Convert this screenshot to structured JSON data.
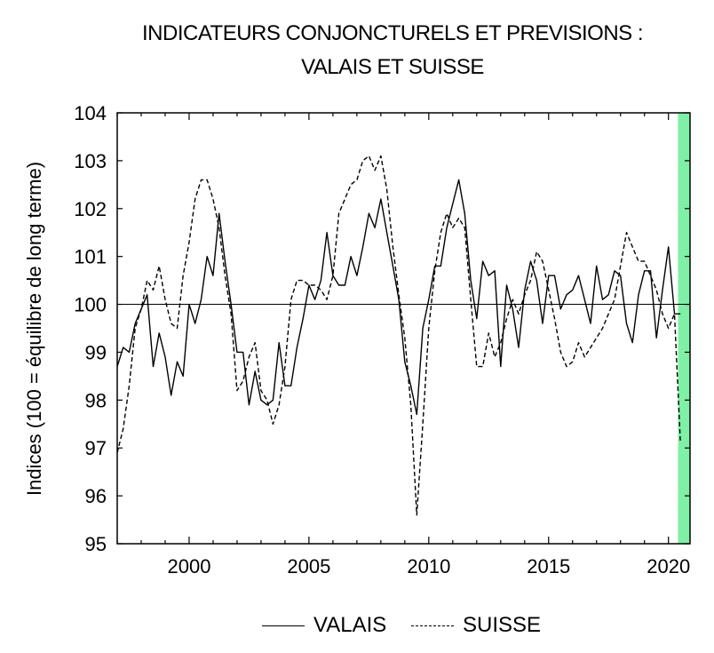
{
  "chart_data": {
    "type": "line",
    "title_lines": [
      "INDICATEURS CONJONCTURELS ET PREVISIONS :",
      "VALAIS ET SUISSE"
    ],
    "ylabel": "Indices (100 = équilibre de long terme)",
    "xlabel": "",
    "xlim": [
      1997,
      2020.9
    ],
    "ylim": [
      95,
      104
    ],
    "xticks": [
      2000,
      2005,
      2010,
      2015,
      2020
    ],
    "yticks": [
      95,
      96,
      97,
      98,
      99,
      100,
      101,
      102,
      103,
      104
    ],
    "reference_line": 100,
    "forecast_band": {
      "from": 2020.4,
      "to": 2020.9,
      "color": "#7ff0a5"
    },
    "grid": false,
    "legend_position": "bottom",
    "series": [
      {
        "name": "VALAIS",
        "style": "solid",
        "x": [
          1997.0,
          1997.25,
          1997.5,
          1997.75,
          1998.0,
          1998.25,
          1998.5,
          1998.75,
          1999.0,
          1999.25,
          1999.5,
          1999.75,
          2000.0,
          2000.25,
          2000.5,
          2000.75,
          2001.0,
          2001.25,
          2001.5,
          2001.75,
          2002.0,
          2002.25,
          2002.5,
          2002.75,
          2003.0,
          2003.25,
          2003.5,
          2003.75,
          2004.0,
          2004.25,
          2004.5,
          2004.75,
          2005.0,
          2005.25,
          2005.5,
          2005.75,
          2006.0,
          2006.25,
          2006.5,
          2006.75,
          2007.0,
          2007.25,
          2007.5,
          2007.75,
          2008.0,
          2008.25,
          2008.5,
          2008.75,
          2009.0,
          2009.25,
          2009.5,
          2009.75,
          2010.0,
          2010.25,
          2010.5,
          2010.75,
          2011.0,
          2011.25,
          2011.5,
          2011.75,
          2012.0,
          2012.25,
          2012.5,
          2012.75,
          2013.0,
          2013.25,
          2013.5,
          2013.75,
          2014.0,
          2014.25,
          2014.5,
          2014.75,
          2015.0,
          2015.25,
          2015.5,
          2015.75,
          2016.0,
          2016.25,
          2016.5,
          2016.75,
          2017.0,
          2017.25,
          2017.5,
          2017.75,
          2018.0,
          2018.25,
          2018.5,
          2018.75,
          2019.0,
          2019.25,
          2019.5,
          2019.75,
          2020.0,
          2020.25,
          2020.5
        ],
        "y": [
          98.7,
          99.1,
          99.0,
          99.6,
          99.9,
          100.2,
          98.7,
          99.4,
          98.9,
          98.1,
          98.8,
          98.5,
          100.0,
          99.6,
          100.1,
          101.0,
          100.6,
          101.9,
          100.9,
          100.0,
          99.0,
          99.0,
          97.9,
          98.6,
          98.0,
          97.9,
          98.0,
          99.2,
          98.3,
          98.3,
          99.1,
          99.7,
          100.4,
          100.1,
          100.5,
          101.5,
          100.6,
          100.4,
          100.4,
          101.0,
          100.6,
          101.2,
          101.9,
          101.6,
          102.2,
          101.5,
          100.8,
          100.1,
          98.8,
          98.3,
          97.7,
          99.5,
          100.1,
          100.8,
          100.8,
          101.6,
          102.1,
          102.6,
          101.9,
          100.5,
          99.7,
          100.9,
          100.6,
          100.7,
          98.7,
          100.4,
          99.9,
          99.1,
          100.3,
          100.9,
          100.5,
          99.6,
          100.6,
          100.6,
          99.9,
          100.2,
          100.3,
          100.6,
          100.1,
          99.6,
          100.8,
          100.1,
          100.2,
          100.7,
          100.6,
          99.6,
          99.2,
          100.2,
          100.7,
          100.7,
          99.3,
          100.3,
          101.2,
          99.8,
          99.8
        ]
      },
      {
        "name": "SUISSE",
        "style": "dashed",
        "x": [
          1997.0,
          1997.25,
          1997.5,
          1997.75,
          1998.0,
          1998.25,
          1998.5,
          1998.75,
          1999.0,
          1999.25,
          1999.5,
          1999.75,
          2000.0,
          2000.25,
          2000.5,
          2000.75,
          2001.0,
          2001.25,
          2001.5,
          2001.75,
          2002.0,
          2002.25,
          2002.5,
          2002.75,
          2003.0,
          2003.25,
          2003.5,
          2003.75,
          2004.0,
          2004.25,
          2004.5,
          2004.75,
          2005.0,
          2005.25,
          2005.5,
          2005.75,
          2006.0,
          2006.25,
          2006.5,
          2006.75,
          2007.0,
          2007.25,
          2007.5,
          2007.75,
          2008.0,
          2008.25,
          2008.5,
          2008.75,
          2009.0,
          2009.25,
          2009.5,
          2009.75,
          2010.0,
          2010.25,
          2010.5,
          2010.75,
          2011.0,
          2011.25,
          2011.5,
          2011.75,
          2012.0,
          2012.25,
          2012.5,
          2012.75,
          2013.0,
          2013.25,
          2013.5,
          2013.75,
          2014.0,
          2014.25,
          2014.5,
          2014.75,
          2015.0,
          2015.25,
          2015.5,
          2015.75,
          2016.0,
          2016.25,
          2016.5,
          2016.75,
          2017.0,
          2017.25,
          2017.5,
          2017.75,
          2018.0,
          2018.25,
          2018.5,
          2018.75,
          2019.0,
          2019.25,
          2019.5,
          2019.75,
          2020.0,
          2020.25,
          2020.5
        ],
        "y": [
          96.9,
          97.4,
          98.3,
          99.5,
          99.9,
          100.5,
          100.3,
          100.8,
          100.1,
          99.6,
          99.5,
          100.6,
          101.3,
          102.2,
          102.6,
          102.6,
          102.2,
          101.6,
          100.6,
          99.8,
          98.2,
          98.4,
          98.9,
          99.2,
          98.2,
          98.0,
          97.5,
          97.9,
          98.7,
          100.1,
          100.5,
          100.5,
          100.4,
          100.4,
          100.3,
          100.1,
          100.6,
          101.9,
          102.2,
          102.5,
          102.6,
          103.0,
          103.1,
          102.8,
          103.1,
          102.4,
          101.2,
          100.2,
          99.3,
          97.9,
          95.6,
          97.5,
          99.5,
          100.7,
          101.5,
          101.9,
          101.6,
          101.8,
          101.6,
          100.1,
          98.7,
          98.7,
          99.4,
          98.9,
          99.2,
          99.7,
          100.1,
          99.8,
          100.2,
          100.5,
          101.1,
          100.9,
          100.3,
          99.7,
          99.0,
          98.7,
          98.8,
          99.2,
          98.9,
          99.1,
          99.3,
          99.5,
          99.8,
          100.1,
          100.8,
          101.5,
          101.2,
          100.9,
          100.9,
          100.6,
          100.3,
          99.8,
          99.5,
          99.8,
          97.1
        ]
      }
    ]
  }
}
